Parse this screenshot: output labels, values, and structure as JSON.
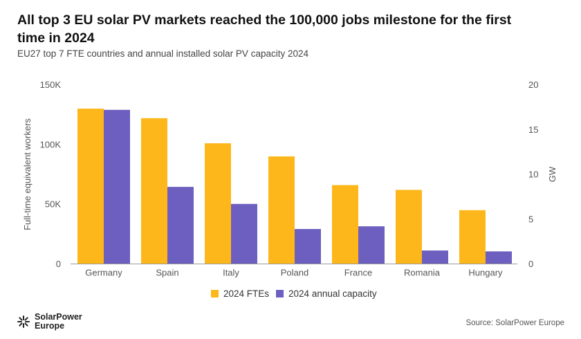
{
  "chart_data": {
    "type": "bar",
    "title": "All top 3 EU solar PV markets reached the 100,000 jobs milestone for the first time in 2024",
    "subtitle": "EU27 top 7 FTE countries and annual installed solar PV capacity 2024",
    "categories": [
      "Germany",
      "Spain",
      "Italy",
      "Poland",
      "France",
      "Romania",
      "Hungary"
    ],
    "series": [
      {
        "name": "2024 FTEs",
        "axis": "left",
        "color": "#FDB71A",
        "values": [
          130000,
          122000,
          101000,
          90000,
          66000,
          62000,
          45000
        ]
      },
      {
        "name": "2024 annual capacity",
        "axis": "right",
        "color": "#6C5FC0",
        "values": [
          17.2,
          8.6,
          6.7,
          3.9,
          4.2,
          1.5,
          1.4
        ]
      }
    ],
    "ylabel": "Full-time equivalent workers",
    "ylim": [
      0,
      150000
    ],
    "yticks": [
      "0",
      "50K",
      "100K",
      "150K"
    ],
    "y2label": "GW",
    "y2lim": [
      0,
      20
    ],
    "y2ticks": [
      "0",
      "5",
      "10",
      "15",
      "20"
    ],
    "grid": false,
    "legend_position": "bottom"
  },
  "footer": {
    "logo": "SolarPower Europe",
    "source": "Source: SolarPower Europe"
  }
}
